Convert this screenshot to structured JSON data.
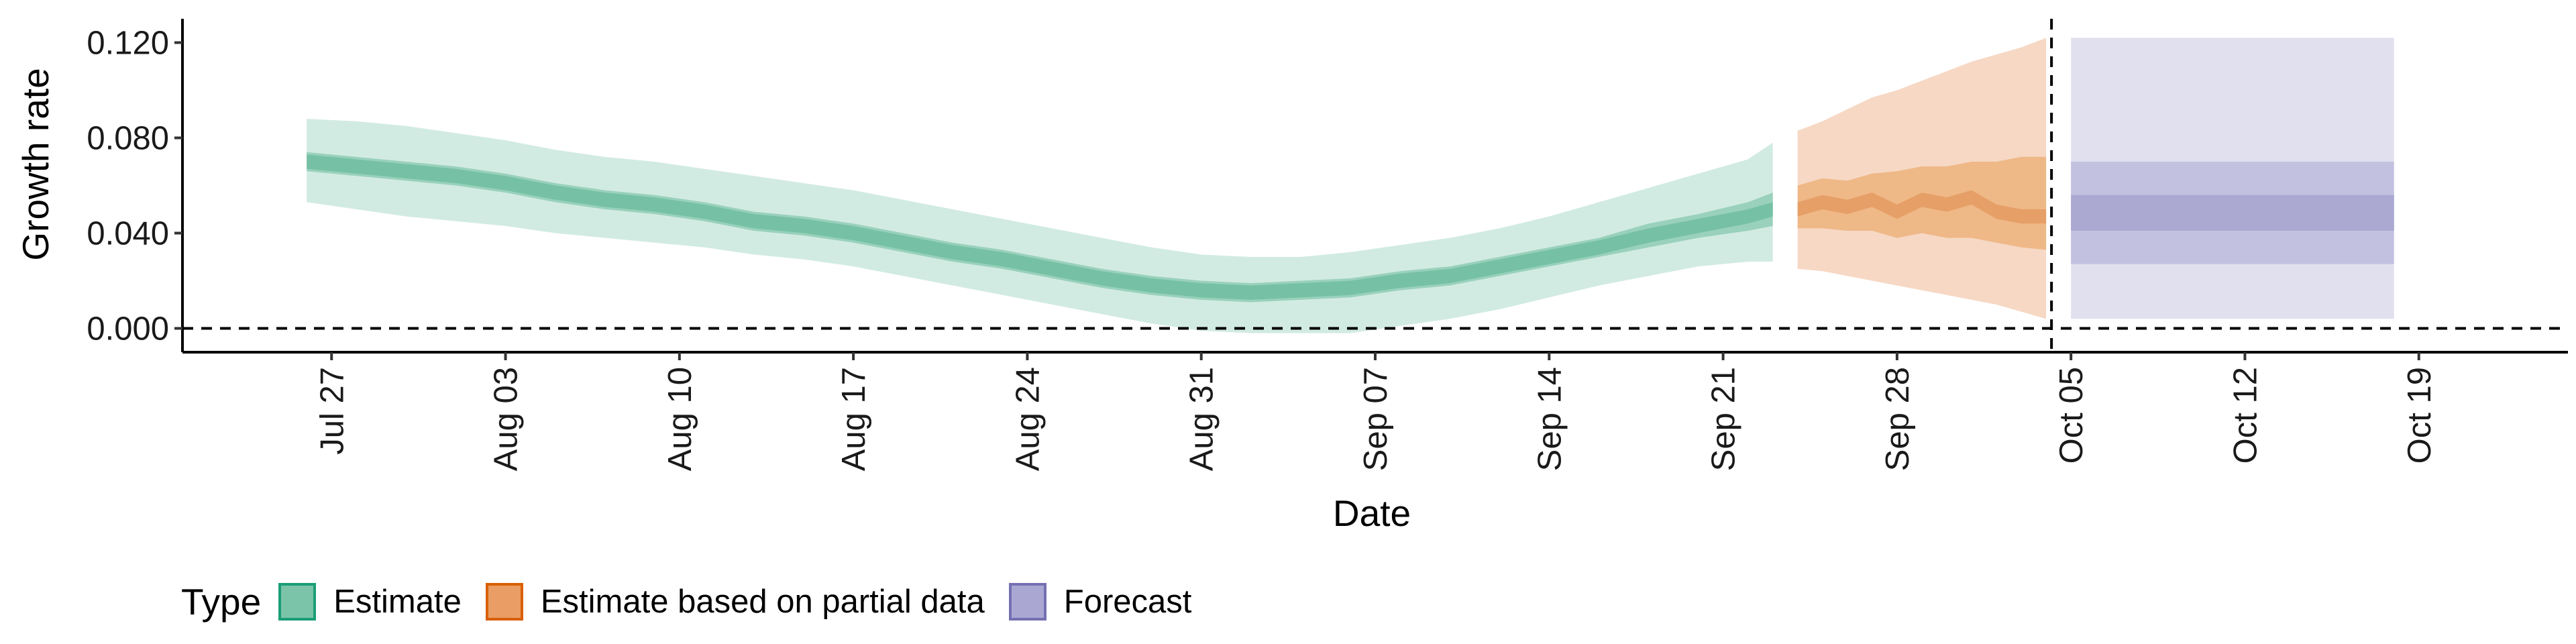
{
  "chart_data": {
    "type": "area",
    "title": "",
    "xlabel": "Date",
    "ylabel": "Growth rate",
    "x_range": [
      "2020-07-21",
      "2020-10-25"
    ],
    "ylim": [
      -0.01,
      0.13
    ],
    "y_ticks": [
      {
        "value": 0.0,
        "label": "0.000"
      },
      {
        "value": 0.04,
        "label": "0.040"
      },
      {
        "value": 0.08,
        "label": "0.080"
      },
      {
        "value": 0.12,
        "label": "0.120"
      }
    ],
    "x_ticks": [
      {
        "date": "2020-07-27",
        "label": "Jul 27"
      },
      {
        "date": "2020-08-03",
        "label": "Aug 03"
      },
      {
        "date": "2020-08-10",
        "label": "Aug 10"
      },
      {
        "date": "2020-08-17",
        "label": "Aug 17"
      },
      {
        "date": "2020-08-24",
        "label": "Aug 24"
      },
      {
        "date": "2020-08-31",
        "label": "Aug 31"
      },
      {
        "date": "2020-09-07",
        "label": "Sep 07"
      },
      {
        "date": "2020-09-14",
        "label": "Sep 14"
      },
      {
        "date": "2020-09-21",
        "label": "Sep 21"
      },
      {
        "date": "2020-09-28",
        "label": "Sep 28"
      },
      {
        "date": "2020-10-05",
        "label": "Oct 05"
      },
      {
        "date": "2020-10-12",
        "label": "Oct 12"
      },
      {
        "date": "2020-10-19",
        "label": "Oct 19"
      }
    ],
    "reference_lines": {
      "horizontal_y": 0.0,
      "vertical_date": "2020-10-04",
      "style": "dashed"
    },
    "grid": false,
    "legend": {
      "title": "Type",
      "position": "bottom-left",
      "entries": [
        {
          "label": "Estimate",
          "fill": "#7cc4a9",
          "border": "#1b9e77"
        },
        {
          "label": "Estimate based on partial data",
          "fill": "#ea9d64",
          "border": "#d95f02"
        },
        {
          "label": "Forecast",
          "fill": "#aaa8d2",
          "border": "#7570b3"
        }
      ]
    },
    "series": [
      {
        "name": "Estimate",
        "colors": {
          "outer": "#d2ebe2",
          "mid": "#99d1bc",
          "inner": "#76c1a5"
        },
        "x": [
          "2020-07-26",
          "2020-07-28",
          "2020-07-30",
          "2020-08-01",
          "2020-08-03",
          "2020-08-05",
          "2020-08-07",
          "2020-08-09",
          "2020-08-11",
          "2020-08-13",
          "2020-08-15",
          "2020-08-17",
          "2020-08-19",
          "2020-08-21",
          "2020-08-23",
          "2020-08-25",
          "2020-08-27",
          "2020-08-29",
          "2020-08-31",
          "2020-09-02",
          "2020-09-04",
          "2020-09-06",
          "2020-09-08",
          "2020-09-10",
          "2020-09-12",
          "2020-09-14",
          "2020-09-16",
          "2020-09-18",
          "2020-09-20",
          "2020-09-22",
          "2020-09-23"
        ],
        "median": [
          0.07,
          0.068,
          0.066,
          0.064,
          0.061,
          0.057,
          0.054,
          0.052,
          0.049,
          0.045,
          0.043,
          0.04,
          0.036,
          0.032,
          0.029,
          0.025,
          0.021,
          0.018,
          0.016,
          0.015,
          0.016,
          0.017,
          0.02,
          0.022,
          0.026,
          0.03,
          0.034,
          0.039,
          0.043,
          0.047,
          0.05
        ],
        "lower_50": [
          0.066,
          0.064,
          0.062,
          0.06,
          0.057,
          0.053,
          0.05,
          0.048,
          0.045,
          0.041,
          0.039,
          0.036,
          0.032,
          0.028,
          0.025,
          0.021,
          0.017,
          0.014,
          0.012,
          0.011,
          0.012,
          0.013,
          0.016,
          0.018,
          0.022,
          0.026,
          0.03,
          0.034,
          0.038,
          0.041,
          0.043
        ],
        "upper_50": [
          0.074,
          0.072,
          0.07,
          0.068,
          0.065,
          0.061,
          0.058,
          0.056,
          0.053,
          0.049,
          0.047,
          0.044,
          0.04,
          0.036,
          0.033,
          0.029,
          0.025,
          0.022,
          0.02,
          0.019,
          0.02,
          0.021,
          0.024,
          0.026,
          0.03,
          0.034,
          0.038,
          0.044,
          0.048,
          0.053,
          0.057
        ],
        "lower_90": [
          0.053,
          0.05,
          0.047,
          0.045,
          0.043,
          0.04,
          0.038,
          0.036,
          0.034,
          0.031,
          0.029,
          0.026,
          0.022,
          0.018,
          0.014,
          0.01,
          0.006,
          0.002,
          -0.001,
          -0.002,
          -0.002,
          -0.002,
          0.001,
          0.004,
          0.008,
          0.013,
          0.018,
          0.022,
          0.026,
          0.028,
          0.028
        ],
        "upper_90": [
          0.088,
          0.087,
          0.085,
          0.082,
          0.079,
          0.075,
          0.072,
          0.07,
          0.067,
          0.064,
          0.061,
          0.058,
          0.054,
          0.05,
          0.046,
          0.042,
          0.038,
          0.034,
          0.031,
          0.03,
          0.03,
          0.032,
          0.035,
          0.038,
          0.042,
          0.047,
          0.053,
          0.059,
          0.065,
          0.071,
          0.078
        ]
      },
      {
        "name": "Estimate based on partial data",
        "colors": {
          "outer": "#f6d8c4",
          "mid": "#efb887",
          "inner": "#e69f67"
        },
        "x": [
          "2020-09-24",
          "2020-09-25",
          "2020-09-26",
          "2020-09-27",
          "2020-09-28",
          "2020-09-29",
          "2020-09-30",
          "2020-10-01",
          "2020-10-02",
          "2020-10-03",
          "2020-10-04"
        ],
        "median": [
          0.05,
          0.053,
          0.051,
          0.054,
          0.049,
          0.054,
          0.052,
          0.055,
          0.049,
          0.047,
          0.047
        ],
        "lower_50": [
          0.042,
          0.042,
          0.041,
          0.041,
          0.038,
          0.04,
          0.038,
          0.038,
          0.036,
          0.034,
          0.033
        ],
        "upper_50": [
          0.06,
          0.063,
          0.062,
          0.065,
          0.066,
          0.068,
          0.068,
          0.07,
          0.07,
          0.072,
          0.072
        ],
        "lower_90": [
          0.025,
          0.024,
          0.022,
          0.02,
          0.018,
          0.016,
          0.014,
          0.012,
          0.01,
          0.007,
          0.004
        ],
        "upper_90": [
          0.083,
          0.087,
          0.092,
          0.097,
          0.1,
          0.104,
          0.108,
          0.112,
          0.115,
          0.118,
          0.122
        ]
      },
      {
        "name": "Forecast",
        "colors": {
          "outer": "#e1e0ef",
          "mid": "#c3c1e0",
          "inner": "#aba8d2"
        },
        "x": [
          "2020-10-05",
          "2020-10-18"
        ],
        "median": [
          0.048,
          0.048
        ],
        "lower_25": [
          0.041,
          0.041
        ],
        "upper_25": [
          0.056,
          0.056
        ],
        "lower_50": [
          0.027,
          0.027
        ],
        "upper_50": [
          0.07,
          0.07
        ],
        "lower_90": [
          0.004,
          0.004
        ],
        "upper_90": [
          0.122,
          0.122
        ]
      }
    ]
  }
}
